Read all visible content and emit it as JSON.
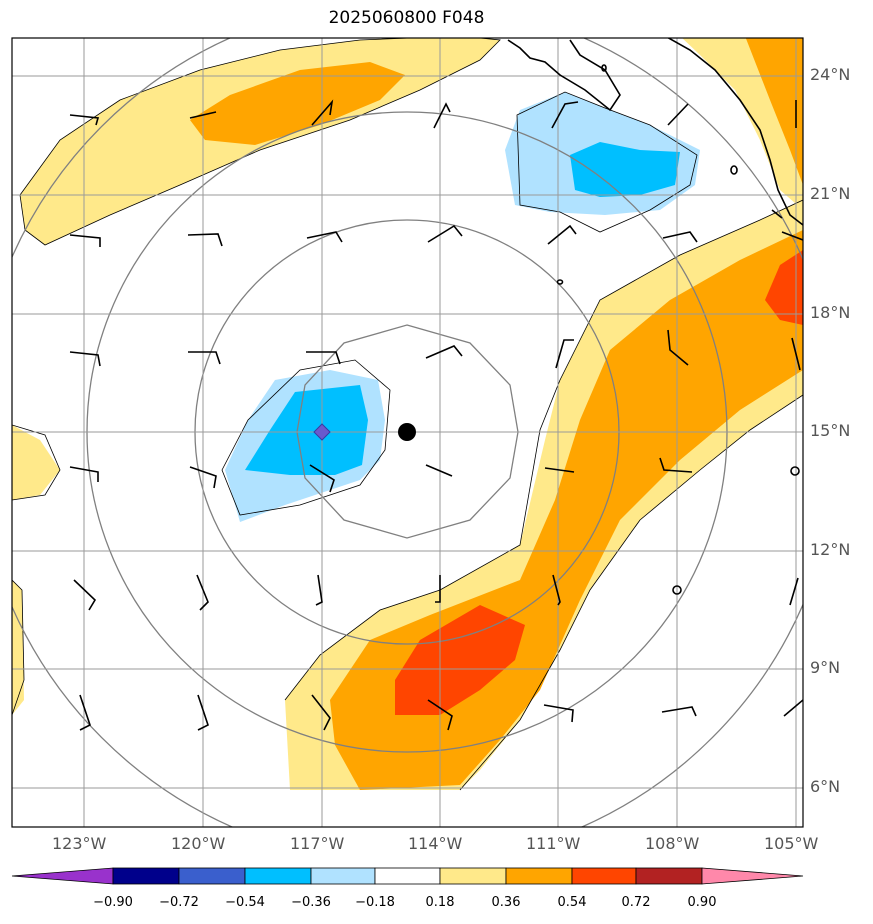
{
  "title": "2025060800 F048",
  "map": {
    "lat_labels": [
      "24°N",
      "21°N",
      "18°N",
      "15°N",
      "12°N",
      "9°N",
      "6°N"
    ],
    "lon_labels": [
      "123°W",
      "120°W",
      "117°W",
      "114°W",
      "111°W",
      "108°W",
      "105°W"
    ],
    "center_marker": {
      "lat": 15,
      "lon": -114.8
    },
    "min_marker": {
      "lat": 15,
      "lon": -117
    }
  },
  "colorbar": {
    "ticks": [
      "−0.90",
      "−0.72",
      "−0.54",
      "−0.36",
      "−0.18",
      "0.18",
      "0.36",
      "0.54",
      "0.72",
      "0.90"
    ],
    "colors": [
      "#9932cc",
      "#00008b",
      "#3a5fcd",
      "#00bfff",
      "#b0e2ff",
      "#ffffff",
      "#ffe98a",
      "#ffa500",
      "#ff4500",
      "#b22222",
      "#ff88aa"
    ]
  }
}
